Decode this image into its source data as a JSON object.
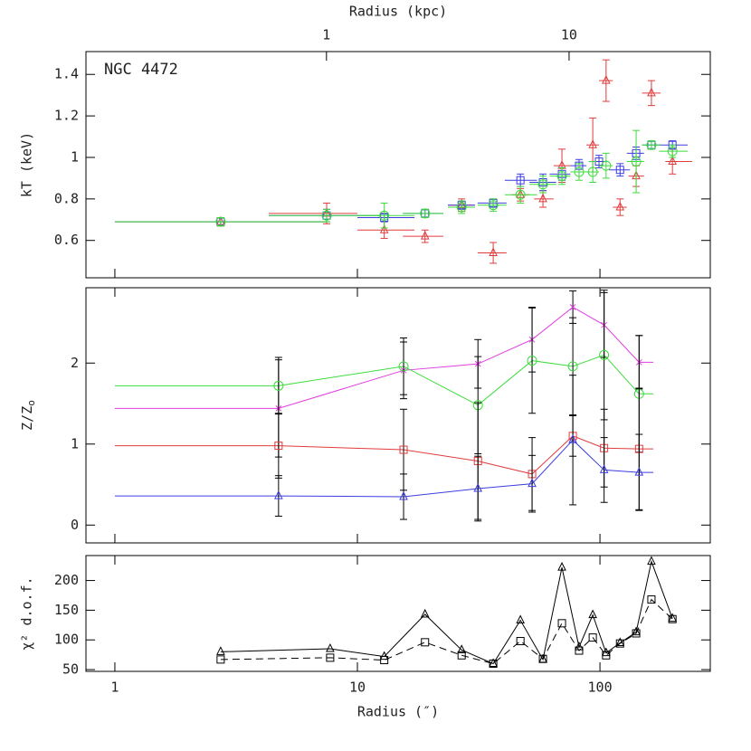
{
  "chart_data": [
    {
      "type": "scatter",
      "ylabel": "kT (keV)",
      "x2label": "Radius (kpc)",
      "annotation": "NGC 4472",
      "xlim": [
        0.76,
        285
      ],
      "ylim": [
        0.42,
        1.51
      ],
      "yticks": [
        0.6,
        0.8,
        1,
        1.2,
        1.4
      ],
      "x2lim": [
        0.102,
        38.2
      ],
      "x2ticks": [
        1,
        10
      ],
      "xscale": "log",
      "series": [
        {
          "color": "#e03c3c",
          "marker": "triangle",
          "x": [
            2.73,
            7.47,
            12.9,
            19.0,
            26.9,
            36.3,
            47.0,
            58.2,
            69.7,
            93.4,
            106,
            121,
            141,
            163,
            199
          ],
          "xlo": [
            1,
            4.31,
            10,
            15.4,
            23.6,
            31.3,
            43.1,
            53.5,
            64.4,
            87.9,
            99.1,
            113,
            131,
            149,
            186
          ],
          "xhi": [
            7.47,
            10,
            17.2,
            22.6,
            30.5,
            41.2,
            51.2,
            64.4,
            75.5,
            99.1,
            113,
            129,
            152,
            178,
            240
          ],
          "values": [
            0.69,
            0.73,
            0.65,
            0.62,
            0.77,
            0.54,
            0.82,
            0.8,
            0.96,
            1.06,
            1.37,
            0.76,
            0.91,
            1.31,
            0.98
          ],
          "yerr": [
            0.02,
            0.05,
            0.04,
            0.03,
            0.03,
            0.05,
            0.03,
            0.04,
            0.08,
            0.13,
            0.1,
            0.04,
            0.05,
            0.06,
            0.06
          ]
        },
        {
          "color": "#3c3ce0",
          "marker": "square",
          "x": [
            2.73,
            7.47,
            12.9,
            19.0,
            26.9,
            36.3,
            47.0,
            58.2,
            69.7,
            82.0,
            99.1,
            121,
            141,
            163,
            199
          ],
          "xlo": [
            1,
            4.31,
            10,
            15.4,
            23.6,
            31.3,
            40.5,
            51.2,
            62.0,
            75.5,
            90.0,
            109,
            129,
            149,
            175
          ],
          "xhi": [
            7.47,
            12.4,
            17.2,
            22.6,
            30.5,
            41.2,
            55.0,
            66.0,
            75.5,
            88.0,
            108,
            133,
            152,
            178,
            230
          ],
          "values": [
            0.69,
            0.72,
            0.71,
            0.73,
            0.77,
            0.78,
            0.89,
            0.88,
            0.92,
            0.96,
            0.98,
            0.94,
            1.02,
            1.06,
            1.06
          ],
          "yerr": [
            0.02,
            0.03,
            0.02,
            0.02,
            0.02,
            0.02,
            0.03,
            0.04,
            0.03,
            0.03,
            0.03,
            0.03,
            0.03,
            0.02,
            0.02
          ]
        },
        {
          "color": "#3cdc3c",
          "marker": "circle",
          "x": [
            2.73,
            7.47,
            12.9,
            19.0,
            26.9,
            36.3,
            47.0,
            58.2,
            69.7,
            82.0,
            93.4,
            106,
            141,
            163,
            199
          ],
          "xlo": [
            1,
            4.31,
            10,
            15.4,
            23.6,
            31.3,
            40.5,
            51.2,
            62.0,
            75.5,
            87.9,
            99.1,
            129,
            149,
            175
          ],
          "xhi": [
            7.47,
            12.4,
            17.2,
            22.6,
            30.5,
            41.2,
            55.0,
            66.0,
            75.5,
            88.0,
            99.1,
            113,
            152,
            178,
            230
          ],
          "values": [
            0.69,
            0.72,
            0.72,
            0.73,
            0.76,
            0.77,
            0.82,
            0.87,
            0.91,
            0.93,
            0.93,
            0.96,
            0.98,
            1.06,
            1.03
          ],
          "yerr": [
            0.02,
            0.03,
            0.06,
            0.02,
            0.03,
            0.03,
            0.04,
            0.04,
            0.04,
            0.04,
            0.05,
            0.06,
            0.15,
            0.02,
            0.03
          ]
        }
      ]
    },
    {
      "type": "line",
      "ylabel": "Z/Z",
      "ylabel_sub": "o",
      "xscale": "log",
      "xlim": [
        0.76,
        285
      ],
      "ylim": [
        -0.22,
        2.93
      ],
      "yticks": [
        0,
        1,
        2
      ],
      "errcolor": "#000000",
      "series": [
        {
          "color": "#e03ce0",
          "marker": "cross",
          "x": [
            1,
            4.73,
            15.5,
            31.4,
            52.5,
            77.3,
            104,
            145,
            166
          ],
          "values": [
            1.44,
            1.44,
            1.91,
            1.99,
            2.29,
            2.69,
            2.47,
            2.01,
            2.01
          ],
          "yerr": [
            null,
            0.6,
            0.35,
            0.3,
            0.4,
            0.2,
            0.4,
            0.33,
            null
          ]
        },
        {
          "color": "#3cdc3c",
          "marker": "circle",
          "x": [
            1,
            4.73,
            15.5,
            31.4,
            52.5,
            77.3,
            104,
            145,
            166
          ],
          "values": [
            1.72,
            1.72,
            1.96,
            1.48,
            2.03,
            1.96,
            2.1,
            1.62,
            1.62
          ],
          "yerr": [
            null,
            0.35,
            0.35,
            0.6,
            0.65,
            0.6,
            0.8,
            0.72,
            null
          ]
        },
        {
          "color": "#e03c3c",
          "marker": "square",
          "x": [
            1,
            4.73,
            15.5,
            31.4,
            52.5,
            77.3,
            104,
            145,
            166
          ],
          "values": [
            0.98,
            0.98,
            0.93,
            0.79,
            0.63,
            1.1,
            0.95,
            0.94,
            0.94
          ],
          "yerr": [
            null,
            0.4,
            0.5,
            0.72,
            0.45,
            0.25,
            0.48,
            0.75,
            null
          ]
        },
        {
          "color": "#3c3ce0",
          "marker": "triangle",
          "x": [
            1,
            4.73,
            15.5,
            31.4,
            52.5,
            77.3,
            104,
            145,
            166
          ],
          "values": [
            0.36,
            0.36,
            0.35,
            0.45,
            0.51,
            1.05,
            0.68,
            0.65,
            0.65
          ],
          "yerr": [
            null,
            0.25,
            0.28,
            0.4,
            0.35,
            0.8,
            0.4,
            0.47,
            null
          ]
        }
      ]
    },
    {
      "type": "line",
      "ylabel": "χ² d.o.f.",
      "xlabel": "Radius (″)",
      "xscale": "log",
      "xlim": [
        0.76,
        285
      ],
      "xticks": [
        1,
        10,
        100
      ],
      "ylim": [
        47,
        242
      ],
      "yticks": [
        50,
        100,
        150,
        200
      ],
      "series": [
        {
          "color": "#000000",
          "marker": "triangle",
          "linestyle": "solid",
          "x": [
            2.73,
            7.72,
            12.9,
            19.0,
            26.9,
            36.3,
            47.0,
            58.2,
            69.7,
            82.0,
            93.4,
            106,
            121,
            141,
            163,
            199
          ],
          "values": [
            80,
            85,
            72,
            143,
            83,
            60,
            133,
            67,
            222,
            88,
            142,
            78,
            95,
            113,
            232,
            136
          ]
        },
        {
          "color": "#000000",
          "marker": "square",
          "linestyle": "dashed",
          "x": [
            2.73,
            7.72,
            12.9,
            19.0,
            26.9,
            36.3,
            47.0,
            58.2,
            69.7,
            82.0,
            93.4,
            106,
            121,
            141,
            163,
            199
          ],
          "values": [
            67,
            70,
            66,
            96,
            74,
            60,
            98,
            68,
            128,
            82,
            104,
            74,
            94,
            111,
            168,
            135
          ]
        }
      ]
    }
  ]
}
